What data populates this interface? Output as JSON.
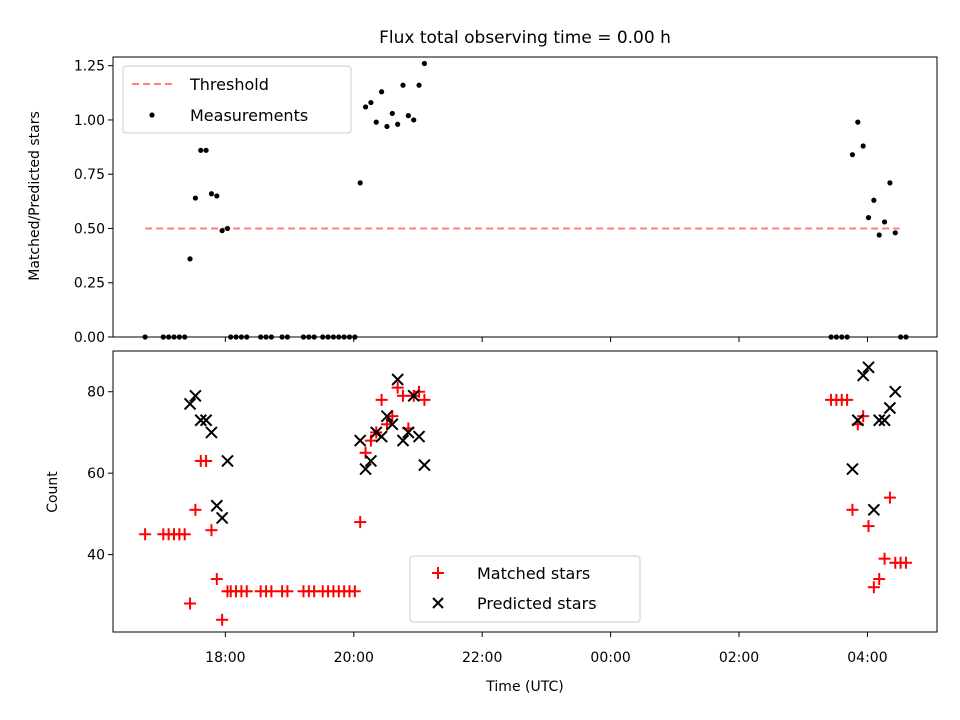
{
  "chart_data": [
    {
      "type": "scatter",
      "title": "Flux total observing time = 0.00 h",
      "ylabel": "Matched/Predicted stars",
      "xlabel": "",
      "x_unit": "hours since 00:00 UTC of observing night start",
      "ylim": [
        0,
        1.29
      ],
      "yticks": [
        0.0,
        0.25,
        0.5,
        0.75,
        1.0,
        1.25
      ],
      "ytick_labels": [
        "0.00",
        "0.25",
        "0.50",
        "0.75",
        "1.00",
        "1.25"
      ],
      "legend": {
        "placement": "top-left",
        "entries": [
          "Threshold",
          "Measurements"
        ]
      },
      "threshold": {
        "name": "Threshold",
        "value": 0.5,
        "x_start": "16:45",
        "x_end": "04:30",
        "color": "#ff7f7f"
      },
      "series": [
        {
          "name": "Measurements",
          "color": "#000000",
          "points": [
            [
              "16:45",
              0.0
            ],
            [
              "17:02",
              0.0
            ],
            [
              "17:07",
              0.0
            ],
            [
              "17:12",
              0.0
            ],
            [
              "17:17",
              0.0
            ],
            [
              "17:22",
              0.0
            ],
            [
              "17:27",
              0.36
            ],
            [
              "17:32",
              0.64
            ],
            [
              "17:37",
              0.86
            ],
            [
              "17:42",
              0.86
            ],
            [
              "17:47",
              0.66
            ],
            [
              "17:52",
              0.65
            ],
            [
              "17:57",
              0.49
            ],
            [
              "18:02",
              0.5
            ],
            [
              "18:05",
              0.0
            ],
            [
              "18:10",
              0.0
            ],
            [
              "18:15",
              0.0
            ],
            [
              "18:20",
              0.0
            ],
            [
              "18:33",
              0.0
            ],
            [
              "18:38",
              0.0
            ],
            [
              "18:43",
              0.0
            ],
            [
              "18:53",
              0.0
            ],
            [
              "18:58",
              0.0
            ],
            [
              "19:13",
              0.0
            ],
            [
              "19:18",
              0.0
            ],
            [
              "19:23",
              0.0
            ],
            [
              "19:31",
              0.0
            ],
            [
              "19:36",
              0.0
            ],
            [
              "19:41",
              0.0
            ],
            [
              "19:46",
              0.0
            ],
            [
              "19:51",
              0.0
            ],
            [
              "19:56",
              0.0
            ],
            [
              "20:01",
              0.0
            ],
            [
              "20:06",
              0.71
            ],
            [
              "20:11",
              1.06
            ],
            [
              "20:16",
              1.08
            ],
            [
              "20:21",
              0.99
            ],
            [
              "20:26",
              1.13
            ],
            [
              "20:31",
              0.97
            ],
            [
              "20:36",
              1.03
            ],
            [
              "20:41",
              0.98
            ],
            [
              "20:46",
              1.16
            ],
            [
              "20:51",
              1.02
            ],
            [
              "20:56",
              1.0
            ],
            [
              "21:01",
              1.16
            ],
            [
              "21:06",
              1.26
            ],
            [
              "03:26",
              0.0
            ],
            [
              "03:31",
              0.0
            ],
            [
              "03:36",
              0.0
            ],
            [
              "03:41",
              0.0
            ],
            [
              "03:46",
              0.84
            ],
            [
              "03:51",
              0.99
            ],
            [
              "03:56",
              0.88
            ],
            [
              "04:01",
              0.55
            ],
            [
              "04:06",
              0.63
            ],
            [
              "04:11",
              0.47
            ],
            [
              "04:16",
              0.53
            ],
            [
              "04:21",
              0.71
            ],
            [
              "04:26",
              0.48
            ],
            [
              "04:31",
              0.0
            ],
            [
              "04:36",
              0.0
            ]
          ]
        }
      ]
    },
    {
      "type": "scatter",
      "title": "",
      "ylabel": "Count",
      "xlabel": "Time (UTC)",
      "x_unit": "hours since 00:00 UTC of observing night start",
      "xlim": [
        "16:15",
        "05:05"
      ],
      "xticks": [
        "18:00",
        "20:00",
        "22:00",
        "00:00",
        "02:00",
        "04:00"
      ],
      "ylim": [
        21,
        90
      ],
      "yticks": [
        40,
        60,
        80
      ],
      "legend": {
        "placement": "bottom-center",
        "entries": [
          "Matched stars",
          "Predicted stars"
        ]
      },
      "series": [
        {
          "name": "Matched stars",
          "marker": "+",
          "color": "#ff0000",
          "points": [
            [
              "16:45",
              45
            ],
            [
              "17:02",
              45
            ],
            [
              "17:07",
              45
            ],
            [
              "17:12",
              45
            ],
            [
              "17:17",
              45
            ],
            [
              "17:22",
              45
            ],
            [
              "17:27",
              28
            ],
            [
              "17:32",
              51
            ],
            [
              "17:37",
              63
            ],
            [
              "17:42",
              63
            ],
            [
              "17:47",
              46
            ],
            [
              "17:52",
              34
            ],
            [
              "17:57",
              24
            ],
            [
              "18:02",
              31
            ],
            [
              "18:05",
              31
            ],
            [
              "18:10",
              31
            ],
            [
              "18:15",
              31
            ],
            [
              "18:20",
              31
            ],
            [
              "18:33",
              31
            ],
            [
              "18:38",
              31
            ],
            [
              "18:43",
              31
            ],
            [
              "18:53",
              31
            ],
            [
              "18:58",
              31
            ],
            [
              "19:13",
              31
            ],
            [
              "19:18",
              31
            ],
            [
              "19:23",
              31
            ],
            [
              "19:31",
              31
            ],
            [
              "19:36",
              31
            ],
            [
              "19:41",
              31
            ],
            [
              "19:46",
              31
            ],
            [
              "19:51",
              31
            ],
            [
              "19:56",
              31
            ],
            [
              "20:01",
              31
            ],
            [
              "20:06",
              48
            ],
            [
              "20:11",
              65
            ],
            [
              "20:16",
              68
            ],
            [
              "20:21",
              70
            ],
            [
              "20:26",
              78
            ],
            [
              "20:31",
              72
            ],
            [
              "20:36",
              74
            ],
            [
              "20:41",
              81
            ],
            [
              "20:46",
              79
            ],
            [
              "20:51",
              71
            ],
            [
              "20:56",
              79
            ],
            [
              "21:01",
              80
            ],
            [
              "21:06",
              78
            ],
            [
              "03:26",
              78
            ],
            [
              "03:31",
              78
            ],
            [
              "03:36",
              78
            ],
            [
              "03:41",
              78
            ],
            [
              "03:46",
              51
            ],
            [
              "03:51",
              72
            ],
            [
              "03:56",
              74
            ],
            [
              "04:01",
              47
            ],
            [
              "04:06",
              32
            ],
            [
              "04:11",
              34
            ],
            [
              "04:16",
              39
            ],
            [
              "04:21",
              54
            ],
            [
              "04:26",
              38
            ],
            [
              "04:31",
              38
            ],
            [
              "04:36",
              38
            ]
          ]
        },
        {
          "name": "Predicted stars",
          "marker": "x",
          "color": "#000000",
          "points": [
            [
              "17:27",
              77
            ],
            [
              "17:32",
              79
            ],
            [
              "17:37",
              73
            ],
            [
              "17:42",
              73
            ],
            [
              "17:47",
              70
            ],
            [
              "17:52",
              52
            ],
            [
              "17:57",
              49
            ],
            [
              "18:02",
              63
            ],
            [
              "20:06",
              68
            ],
            [
              "20:11",
              61
            ],
            [
              "20:16",
              63
            ],
            [
              "20:21",
              70
            ],
            [
              "20:26",
              69
            ],
            [
              "20:31",
              74
            ],
            [
              "20:36",
              72
            ],
            [
              "20:41",
              83
            ],
            [
              "20:46",
              68
            ],
            [
              "20:51",
              70
            ],
            [
              "20:56",
              79
            ],
            [
              "21:01",
              69
            ],
            [
              "21:06",
              62
            ],
            [
              "03:46",
              61
            ],
            [
              "03:51",
              73
            ],
            [
              "03:56",
              84
            ],
            [
              "04:01",
              86
            ],
            [
              "04:06",
              51
            ],
            [
              "04:11",
              73
            ],
            [
              "04:16",
              73
            ],
            [
              "04:21",
              76
            ],
            [
              "04:26",
              80
            ]
          ]
        }
      ]
    }
  ]
}
